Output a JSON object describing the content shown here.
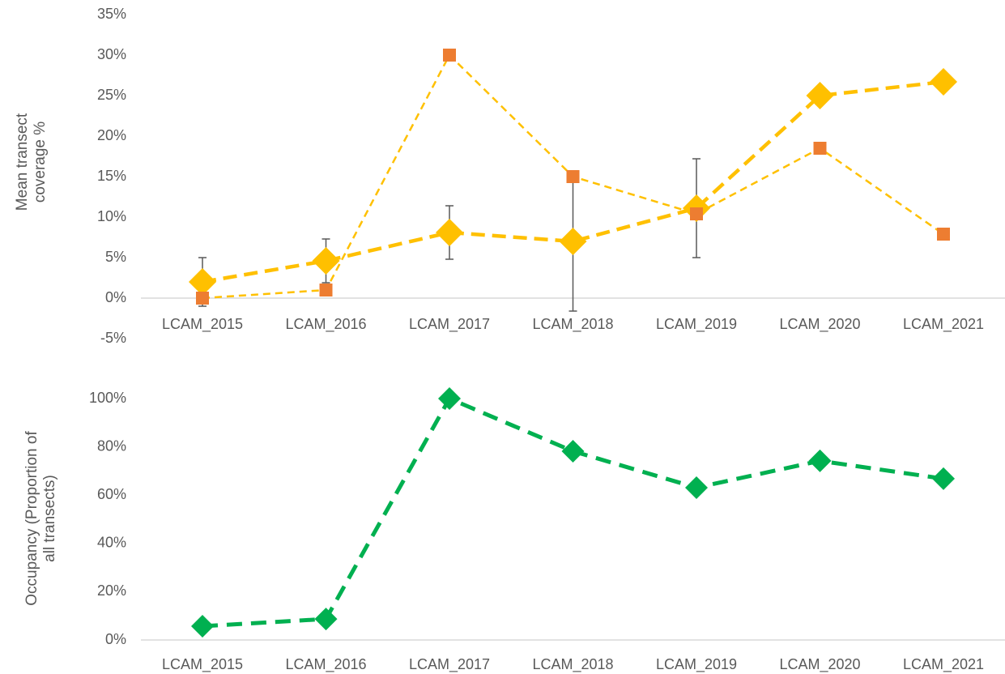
{
  "chart_data": [
    {
      "type": "line",
      "ylabel": [
        "Mean transect",
        "coverage %"
      ],
      "categories": [
        "LCAM_2015",
        "LCAM_2016",
        "LCAM_2017",
        "LCAM_2018",
        "LCAM_2019",
        "LCAM_2020",
        "LCAM_2021"
      ],
      "series": [
        {
          "color": "#FFC000",
          "marker": "diamond",
          "marker_color": "#FFC000",
          "values": [
            2.0,
            4.6,
            8.1,
            7.0,
            11.1,
            25.0,
            26.7
          ],
          "errors": [
            3.0,
            2.7,
            3.3,
            8.6,
            6.1,
            null,
            null
          ]
        },
        {
          "color": "#FFC000",
          "marker": "square",
          "marker_color": "#ED7D31",
          "values": [
            0,
            1.0,
            30,
            15,
            10.4,
            18.5,
            7.9
          ]
        }
      ],
      "ylim": [
        -5,
        35
      ],
      "yticks": [
        {
          "value": -5,
          "label": "-5%"
        },
        {
          "value": 0,
          "label": "0%"
        },
        {
          "value": 5,
          "label": "5%"
        },
        {
          "value": 10,
          "label": "10%"
        },
        {
          "value": 15,
          "label": "15%"
        },
        {
          "value": 20,
          "label": "20%"
        },
        {
          "value": 25,
          "label": "25%"
        },
        {
          "value": 30,
          "label": "30%"
        },
        {
          "value": 35,
          "label": "35%"
        }
      ],
      "grid": false
    },
    {
      "type": "line",
      "ylabel": [
        "Occupancy (Proportion of",
        "all transects)"
      ],
      "categories": [
        "LCAM_2015",
        "LCAM_2016",
        "LCAM_2017",
        "LCAM_2018",
        "LCAM_2019",
        "LCAM_2020",
        "LCAM_2021"
      ],
      "series": [
        {
          "color": "#00B050",
          "marker": "diamond",
          "marker_color": "#00B050",
          "values": [
            5.7,
            8.7,
            100,
            78.2,
            63.1,
            74.2,
            66.8
          ]
        }
      ],
      "ylim": [
        0,
        100
      ],
      "yticks": [
        {
          "value": 0,
          "label": "0%"
        },
        {
          "value": 20,
          "label": "20%"
        },
        {
          "value": 40,
          "label": "40%"
        },
        {
          "value": 60,
          "label": "60%"
        },
        {
          "value": 80,
          "label": "80%"
        },
        {
          "value": 100,
          "label": "100%"
        }
      ],
      "grid": false
    }
  ]
}
